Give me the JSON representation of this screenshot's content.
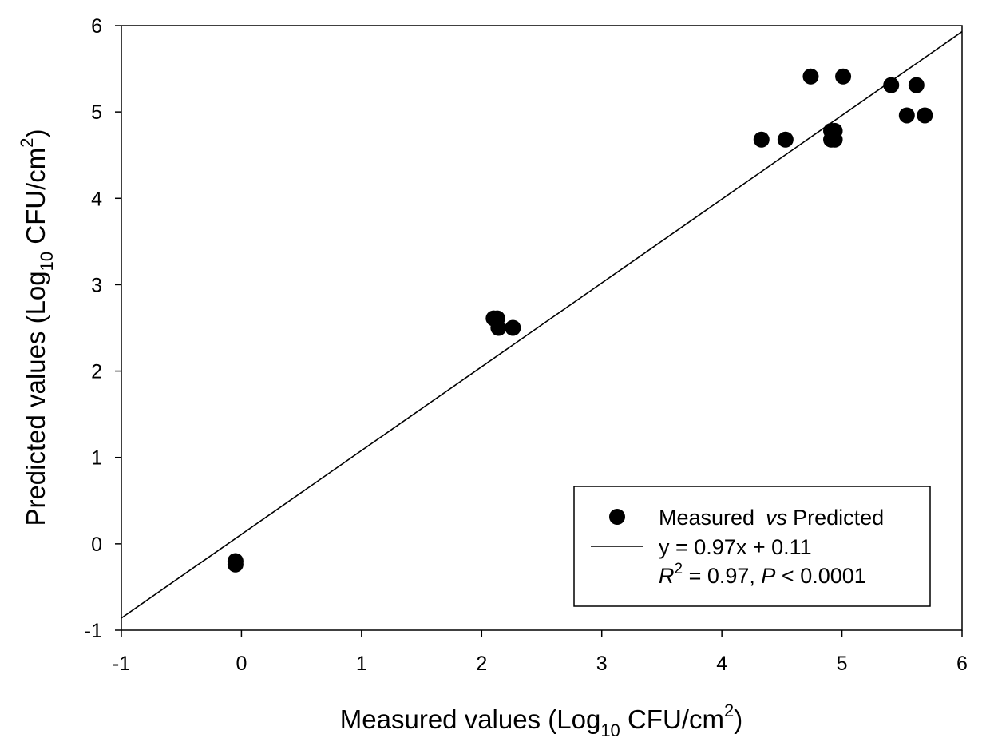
{
  "chart_data": {
    "type": "scatter",
    "xlabel": {
      "main": "Measured values (Log",
      "sub": "10",
      "unit": " CFU/cm",
      "sup": "2",
      "close": ")"
    },
    "ylabel": {
      "main": "Predicted values (Log",
      "sub": "10",
      "unit": " CFU/cm",
      "sup": "2",
      "close": ")"
    },
    "xlim": [
      -1,
      6
    ],
    "ylim": [
      -1,
      6
    ],
    "xticks": [
      "-1",
      "0",
      "1",
      "2",
      "3",
      "4",
      "5",
      "6"
    ],
    "yticks": [
      "-1",
      "0",
      "1",
      "2",
      "3",
      "4",
      "5",
      "6"
    ],
    "series": [
      {
        "name": "Measured  vs Predicted",
        "marker": "circle",
        "color": "#000000",
        "x": [
          -0.05,
          -0.05,
          2.1,
          2.13,
          2.14,
          2.26,
          4.33,
          4.53,
          4.74,
          4.91,
          4.94,
          4.91,
          4.94,
          5.01,
          5.41,
          5.54,
          5.62,
          5.69
        ],
        "y": [
          -0.2,
          -0.24,
          2.61,
          2.61,
          2.5,
          2.5,
          4.68,
          4.68,
          5.41,
          4.78,
          4.78,
          4.68,
          4.68,
          5.41,
          5.31,
          4.96,
          5.31,
          4.96
        ]
      }
    ],
    "fit": {
      "slope": 0.97,
      "intercept": 0.11,
      "x_range": [
        -1,
        6
      ],
      "color": "#000000"
    },
    "legend": {
      "placement": "bottom-right",
      "points_label_a": "Measured",
      "points_label_b": "vs",
      "points_label_c": "Predicted",
      "equation": "y = 0.97x + 0.11",
      "r_symbol": "R",
      "r_exp": "2",
      "r_value": " = 0.97, ",
      "p_symbol": "P",
      "p_value": " < 0.0001"
    }
  }
}
